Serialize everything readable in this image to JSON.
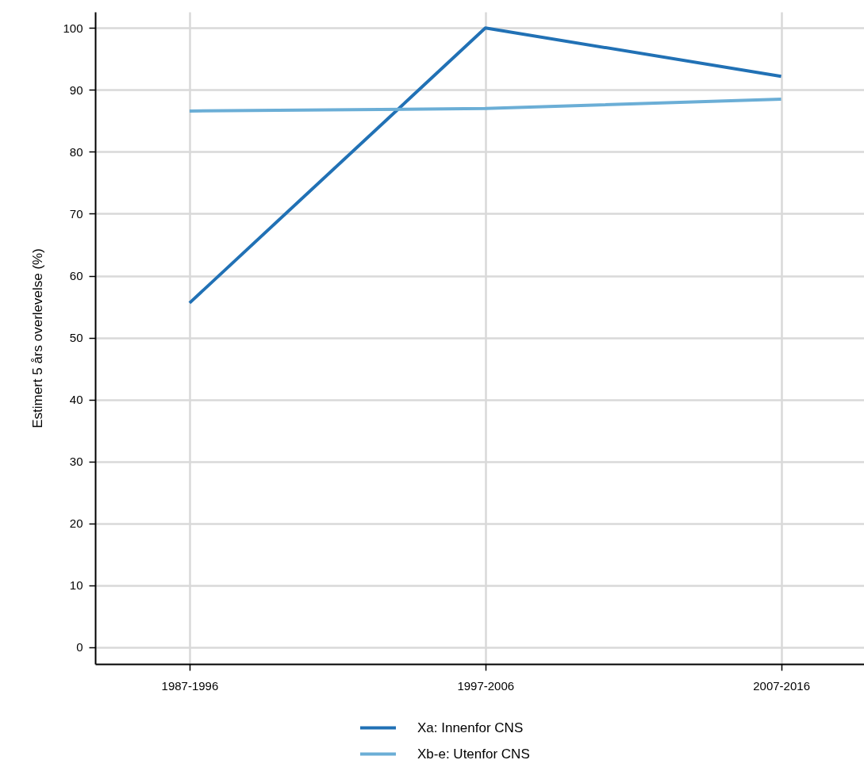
{
  "chart_data": {
    "type": "line",
    "ylabel": "Estimert 5 års overlevelse (%)",
    "categories": [
      "1987-1996",
      "1997-2006",
      "2007-2016"
    ],
    "series": [
      {
        "name": "Xa: Innenfor CNS",
        "color": "#2171b5",
        "values": [
          55.6,
          100,
          92.2
        ]
      },
      {
        "name": "Xb-e: Utenfor CNS",
        "color": "#6baed6",
        "values": [
          86.6,
          87.0,
          88.5
        ]
      }
    ],
    "ylim": [
      -2.7,
      102.6
    ],
    "yticks": [
      0,
      10,
      20,
      30,
      40,
      50,
      60,
      70,
      80,
      90,
      100
    ],
    "grid": true,
    "legend": "bottom",
    "marker": "none",
    "line_style": "solid"
  }
}
